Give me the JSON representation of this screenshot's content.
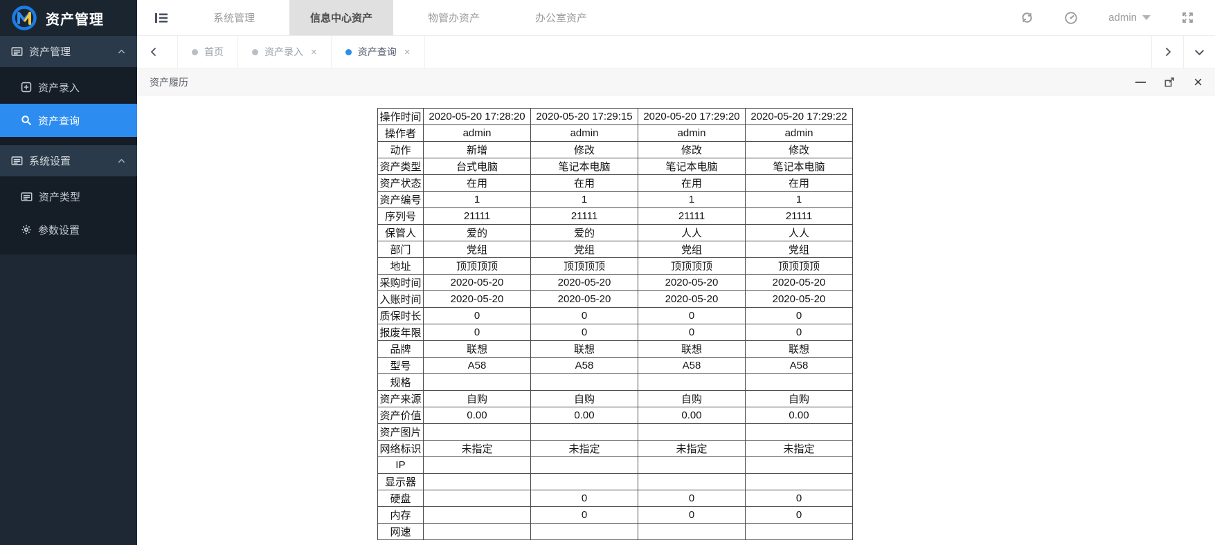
{
  "app": {
    "title": "资产管理"
  },
  "topbar": {
    "nav_tabs": [
      {
        "label": "系统管理",
        "active": false
      },
      {
        "label": "信息中心资产",
        "active": true
      },
      {
        "label": "物管办资产",
        "active": false
      },
      {
        "label": "办公室资产",
        "active": false
      }
    ],
    "user": {
      "name": "admin"
    }
  },
  "sidebar": {
    "groups": [
      {
        "label": "资产管理",
        "icon": "card-icon",
        "items": [
          {
            "label": "资产录入",
            "icon": "plus-square-icon",
            "active": false
          },
          {
            "label": "资产查询",
            "icon": "search-icon",
            "active": true
          }
        ]
      },
      {
        "label": "系统设置",
        "icon": "card-icon",
        "items": [
          {
            "label": "资产类型",
            "icon": "card-icon",
            "active": false
          },
          {
            "label": "参数设置",
            "icon": "gear-icon",
            "active": false
          }
        ]
      }
    ]
  },
  "tabbar": {
    "tabs": [
      {
        "label": "首页",
        "active": false,
        "closable": false
      },
      {
        "label": "资产录入",
        "active": false,
        "closable": true
      },
      {
        "label": "资产查询",
        "active": true,
        "closable": true
      }
    ]
  },
  "panel": {
    "title": "资产履历"
  },
  "history_table": {
    "rows": [
      {
        "label": "操作时间",
        "values": [
          "2020-05-20 17:28:20",
          "2020-05-20 17:29:15",
          "2020-05-20 17:29:20",
          "2020-05-20 17:29:22"
        ]
      },
      {
        "label": "操作者",
        "values": [
          "admin",
          "admin",
          "admin",
          "admin"
        ]
      },
      {
        "label": "动作",
        "values": [
          "新增",
          "修改",
          "修改",
          "修改"
        ]
      },
      {
        "label": "资产类型",
        "values": [
          "台式电脑",
          "笔记本电脑",
          "笔记本电脑",
          "笔记本电脑"
        ]
      },
      {
        "label": "资产状态",
        "values": [
          "在用",
          "在用",
          "在用",
          "在用"
        ]
      },
      {
        "label": "资产编号",
        "values": [
          "1",
          "1",
          "1",
          "1"
        ]
      },
      {
        "label": "序列号",
        "values": [
          "21111",
          "21111",
          "21111",
          "21111"
        ]
      },
      {
        "label": "保管人",
        "values": [
          "爱的",
          "爱的",
          "人人",
          "人人"
        ]
      },
      {
        "label": "部门",
        "values": [
          "党组",
          "党组",
          "党组",
          "党组"
        ]
      },
      {
        "label": "地址",
        "values": [
          "顶顶顶顶",
          "顶顶顶顶",
          "顶顶顶顶",
          "顶顶顶顶"
        ]
      },
      {
        "label": "采购时间",
        "values": [
          "2020-05-20",
          "2020-05-20",
          "2020-05-20",
          "2020-05-20"
        ]
      },
      {
        "label": "入账时间",
        "values": [
          "2020-05-20",
          "2020-05-20",
          "2020-05-20",
          "2020-05-20"
        ]
      },
      {
        "label": "质保时长",
        "values": [
          "0",
          "0",
          "0",
          "0"
        ]
      },
      {
        "label": "报废年限",
        "values": [
          "0",
          "0",
          "0",
          "0"
        ]
      },
      {
        "label": "品牌",
        "values": [
          "联想",
          "联想",
          "联想",
          "联想"
        ]
      },
      {
        "label": "型号",
        "values": [
          "A58",
          "A58",
          "A58",
          "A58"
        ]
      },
      {
        "label": "规格",
        "values": [
          "",
          "",
          "",
          ""
        ]
      },
      {
        "label": "资产来源",
        "values": [
          "自购",
          "自购",
          "自购",
          "自购"
        ]
      },
      {
        "label": "资产价值",
        "values": [
          "0.00",
          "0.00",
          "0.00",
          "0.00"
        ]
      },
      {
        "label": "资产图片",
        "values": [
          "",
          "",
          "",
          ""
        ]
      },
      {
        "label": "网络标识",
        "values": [
          "未指定",
          "未指定",
          "未指定",
          "未指定"
        ]
      },
      {
        "label": "IP",
        "values": [
          "",
          "",
          "",
          ""
        ]
      },
      {
        "label": "显示器",
        "values": [
          "",
          "",
          "",
          ""
        ]
      },
      {
        "label": "硬盘",
        "values": [
          "",
          "0",
          "0",
          "0"
        ]
      },
      {
        "label": "内存",
        "values": [
          "",
          "0",
          "0",
          "0"
        ]
      },
      {
        "label": "网速",
        "values": [
          "",
          "",
          "",
          ""
        ]
      }
    ]
  },
  "colors": {
    "accent": "#2d8cf0",
    "sidebar_bg": "#1e2834",
    "active_nav_bg": "#e0e0e0",
    "logo_yellow": "#f5c63c"
  }
}
